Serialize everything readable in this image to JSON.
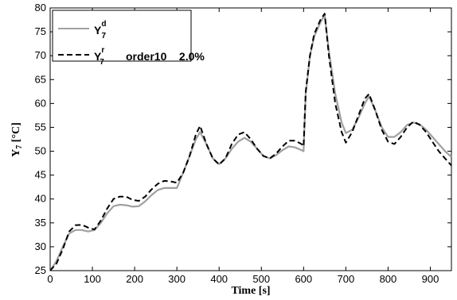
{
  "chart_data": {
    "type": "line",
    "xlabel": "Time [s]",
    "ylabel": "Y7 [°C]",
    "ylabel_parts": {
      "main": "Y",
      "sub": "7",
      "unit": " [°C]"
    },
    "xlim": [
      0,
      950
    ],
    "ylim": [
      25,
      80
    ],
    "xticks": [
      0,
      100,
      200,
      300,
      400,
      500,
      600,
      700,
      800,
      900
    ],
    "yticks": [
      25,
      30,
      35,
      40,
      45,
      50,
      55,
      60,
      65,
      70,
      75,
      80
    ],
    "grid": false,
    "legend_position": "top-left",
    "series": [
      {
        "name": "Y7d",
        "label": {
          "main": "Y",
          "sup": "d",
          "sub": "7",
          "extra": ""
        },
        "color": "#a0a0a0",
        "style": "solid",
        "x": [
          0,
          15,
          30,
          45,
          60,
          75,
          90,
          105,
          120,
          135,
          150,
          165,
          180,
          195,
          210,
          225,
          240,
          255,
          270,
          285,
          300,
          315,
          330,
          345,
          355,
          370,
          385,
          400,
          415,
          430,
          445,
          460,
          475,
          490,
          505,
          520,
          535,
          550,
          565,
          580,
          595,
          600,
          605,
          615,
          625,
          640,
          650,
          660,
          675,
          690,
          700,
          715,
          730,
          745,
          755,
          770,
          785,
          800,
          815,
          830,
          845,
          860,
          875,
          890,
          905,
          920,
          935,
          950
        ],
        "y": [
          25,
          27,
          30,
          32.8,
          33.5,
          33.5,
          33.2,
          33.5,
          35,
          37,
          38.5,
          38.8,
          38.7,
          38.4,
          38.5,
          39.5,
          40.8,
          41.9,
          42.3,
          42.3,
          42.3,
          45.5,
          49,
          52.5,
          54,
          51.5,
          48.5,
          47.3,
          48.5,
          50.5,
          52,
          52.8,
          52,
          50.5,
          49,
          48.5,
          49.2,
          50.2,
          51,
          50.8,
          50.2,
          50,
          62,
          70,
          74,
          77,
          78.5,
          71,
          62,
          56,
          53.8,
          54.5,
          57,
          60,
          61.5,
          58.5,
          55,
          53,
          53,
          54,
          55.5,
          56,
          55.6,
          54.5,
          53,
          51.5,
          50,
          48.8
        ]
      },
      {
        "name": "Y7r order10 2.0%",
        "label": {
          "main": "Y",
          "sup": "r",
          "sub": "7",
          "extra": "order10    2.0%"
        },
        "color": "#000000",
        "style": "dashed",
        "x": [
          0,
          15,
          30,
          45,
          60,
          75,
          90,
          105,
          120,
          135,
          150,
          165,
          180,
          195,
          210,
          225,
          240,
          255,
          270,
          285,
          300,
          315,
          330,
          345,
          355,
          370,
          385,
          400,
          415,
          430,
          445,
          460,
          475,
          490,
          505,
          520,
          535,
          550,
          565,
          580,
          595,
          600,
          605,
          615,
          625,
          640,
          650,
          660,
          675,
          690,
          700,
          715,
          730,
          745,
          755,
          770,
          785,
          800,
          815,
          830,
          845,
          860,
          875,
          890,
          905,
          920,
          935,
          950
        ],
        "y": [
          25,
          26.5,
          29.5,
          33.2,
          34.5,
          34.6,
          34,
          33.6,
          35.5,
          38,
          40,
          40.5,
          40.5,
          39.8,
          39.6,
          40.5,
          42,
          43.2,
          43.8,
          43.7,
          43.4,
          45.5,
          49,
          53.5,
          55.3,
          51.5,
          48.5,
          47.2,
          48.5,
          51.5,
          53.5,
          54,
          52.5,
          50.5,
          49,
          48.5,
          49.5,
          51,
          52.2,
          52.2,
          51.5,
          51,
          62.5,
          70,
          74.5,
          77.5,
          78.8,
          70,
          60,
          54,
          51.8,
          54,
          57.5,
          61,
          62,
          58.5,
          54.5,
          52,
          51.5,
          53,
          55,
          56.2,
          55.5,
          54,
          52,
          50,
          48.5,
          47
        ]
      }
    ]
  }
}
